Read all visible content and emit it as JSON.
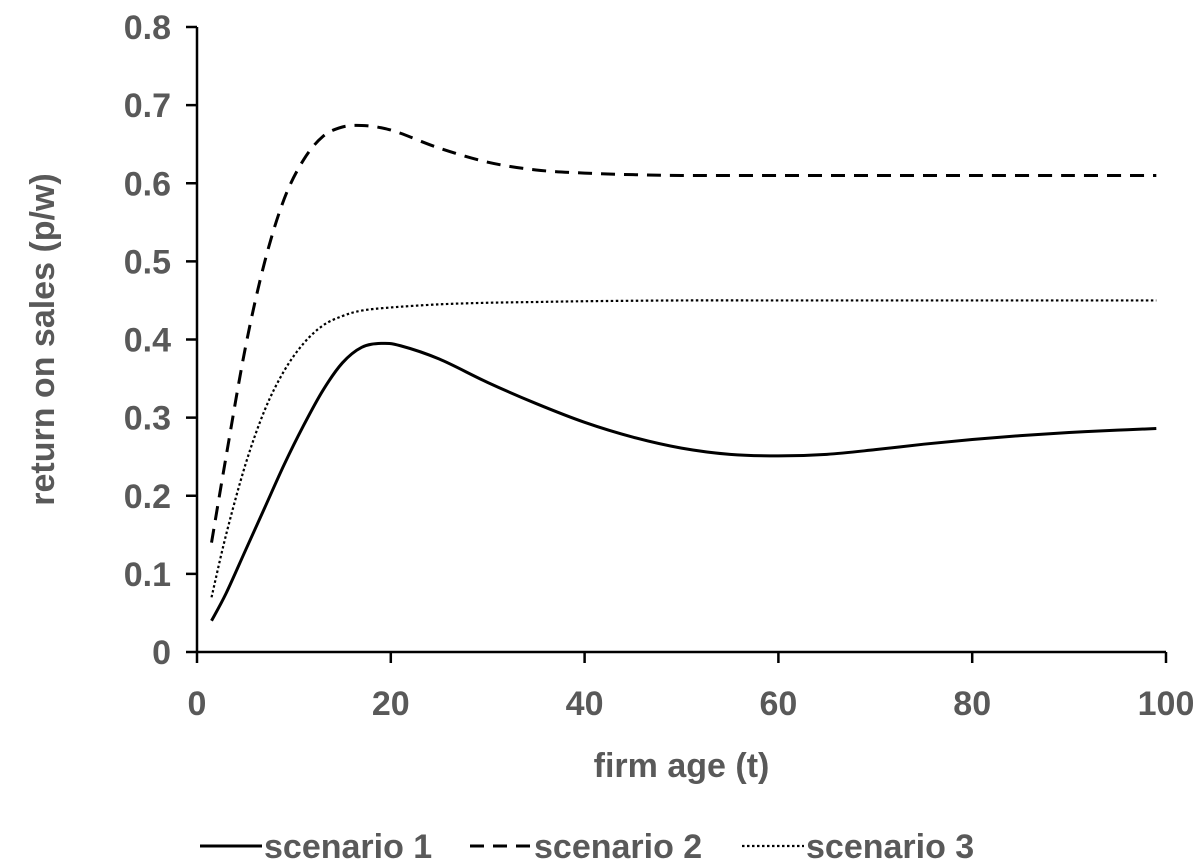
{
  "chart_data": {
    "type": "line",
    "title": "",
    "xlabel": "firm age (t)",
    "ylabel": "return on sales (p/w)",
    "xlim": [
      0,
      100
    ],
    "ylim": [
      0,
      0.8
    ],
    "x_ticks": [
      0,
      20,
      40,
      60,
      80,
      100
    ],
    "x_tick_labels": [
      "0",
      "20",
      "40",
      "60",
      "80",
      "100"
    ],
    "y_ticks": [
      0,
      0.1,
      0.2,
      0.3,
      0.4,
      0.5,
      0.6,
      0.7,
      0.8
    ],
    "y_tick_labels": [
      "0",
      "0.1",
      "0.2",
      "0.3",
      "0.4",
      "0.5",
      "0.6",
      "0.7",
      "0.8"
    ],
    "grid": false,
    "legend_position": "bottom",
    "series": [
      {
        "name": "scenario 1",
        "style": "solid",
        "color": "#000000",
        "x": [
          1.5,
          3,
          5,
          7,
          9,
          11,
          13,
          15,
          17,
          19,
          21,
          25,
          30,
          35,
          40,
          45,
          50,
          55,
          60,
          65,
          70,
          75,
          80,
          85,
          90,
          95,
          99
        ],
        "y": [
          0.04,
          0.075,
          0.13,
          0.185,
          0.24,
          0.29,
          0.335,
          0.37,
          0.39,
          0.395,
          0.392,
          0.375,
          0.345,
          0.318,
          0.294,
          0.275,
          0.261,
          0.253,
          0.251,
          0.253,
          0.259,
          0.266,
          0.272,
          0.277,
          0.281,
          0.284,
          0.286
        ]
      },
      {
        "name": "scenario 2",
        "style": "dashed",
        "color": "#000000",
        "x": [
          1.5,
          3,
          5,
          7,
          9,
          11,
          13,
          15,
          17,
          19,
          21,
          25,
          30,
          35,
          40,
          45,
          50,
          60,
          70,
          80,
          90,
          99
        ],
        "y": [
          0.14,
          0.25,
          0.39,
          0.5,
          0.58,
          0.63,
          0.66,
          0.672,
          0.674,
          0.671,
          0.664,
          0.645,
          0.627,
          0.617,
          0.613,
          0.611,
          0.61,
          0.61,
          0.61,
          0.61,
          0.61,
          0.61
        ]
      },
      {
        "name": "scenario 3",
        "style": "dotted",
        "color": "#000000",
        "x": [
          1.5,
          3,
          5,
          7,
          9,
          11,
          13,
          15,
          17,
          20,
          25,
          30,
          35,
          40,
          50,
          60,
          70,
          80,
          90,
          99
        ],
        "y": [
          0.07,
          0.15,
          0.24,
          0.31,
          0.36,
          0.395,
          0.418,
          0.43,
          0.437,
          0.441,
          0.445,
          0.447,
          0.448,
          0.449,
          0.45,
          0.45,
          0.45,
          0.45,
          0.45,
          0.45
        ]
      }
    ]
  }
}
